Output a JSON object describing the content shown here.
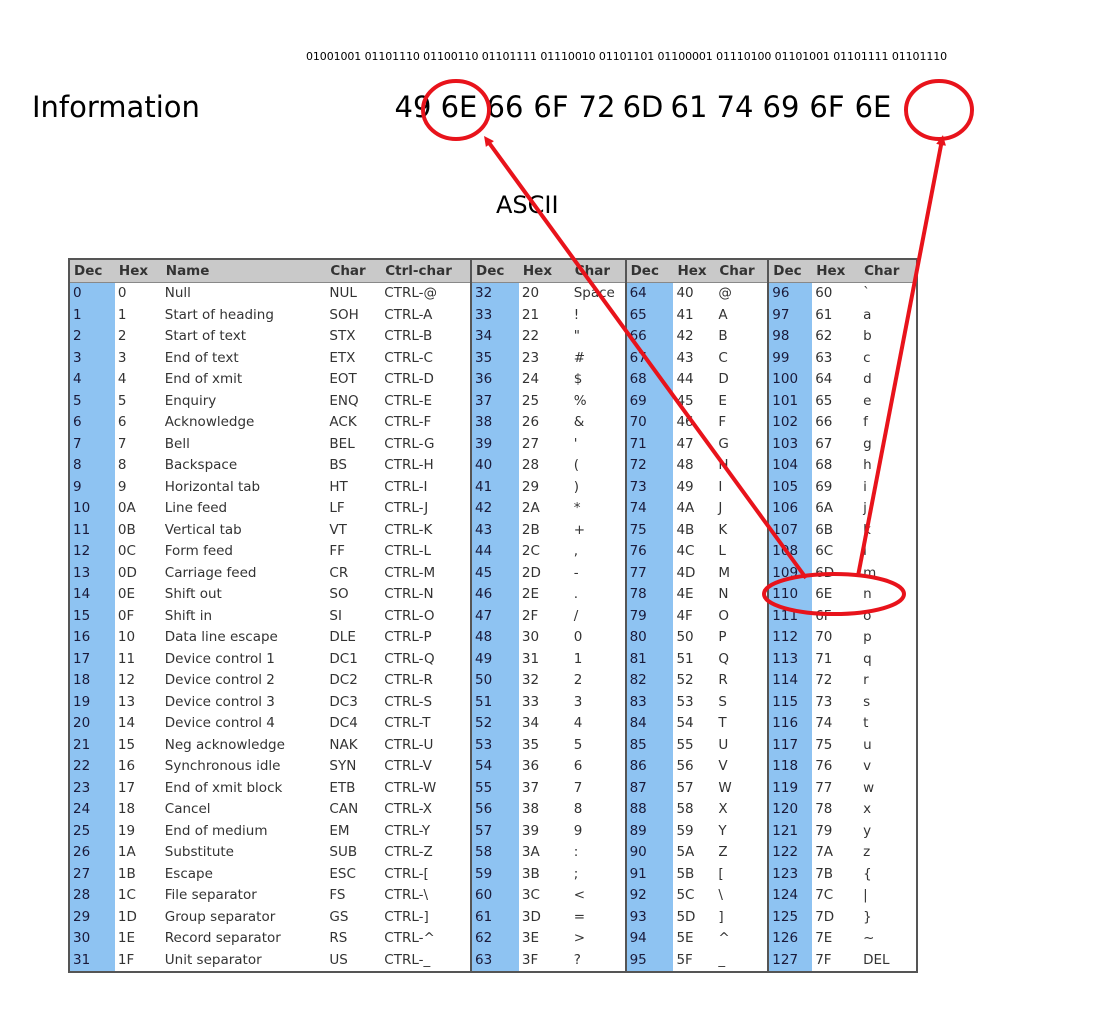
{
  "binary_string": "01001001 01101110 01100110 01101111 01110010 01101101 01100001 01110100 01101001 01101111 01101110",
  "word": "Information",
  "hex_values": [
    "49",
    "6E",
    "66",
    "6F",
    "72",
    "6D",
    "61",
    "74",
    "69",
    "6F",
    "6E"
  ],
  "ascii_label": "ASCII",
  "headers": [
    "Dec",
    "Hex",
    "Name",
    "Char",
    "Ctrl-char",
    "Dec",
    "Hex",
    "Char",
    "Dec",
    "Hex",
    "Char",
    "Dec",
    "Hex",
    "Char"
  ],
  "rows": [
    [
      "0",
      "0",
      "Null",
      "NUL",
      "CTRL-@",
      "32",
      "20",
      "Space",
      "64",
      "40",
      "@",
      "96",
      "60",
      "`"
    ],
    [
      "1",
      "1",
      "Start of heading",
      "SOH",
      "CTRL-A",
      "33",
      "21",
      "!",
      "65",
      "41",
      "A",
      "97",
      "61",
      "a"
    ],
    [
      "2",
      "2",
      "Start of text",
      "STX",
      "CTRL-B",
      "34",
      "22",
      "\"",
      "66",
      "42",
      "B",
      "98",
      "62",
      "b"
    ],
    [
      "3",
      "3",
      "End of text",
      "ETX",
      "CTRL-C",
      "35",
      "23",
      "#",
      "67",
      "43",
      "C",
      "99",
      "63",
      "c"
    ],
    [
      "4",
      "4",
      "End of xmit",
      "EOT",
      "CTRL-D",
      "36",
      "24",
      "$",
      "68",
      "44",
      "D",
      "100",
      "64",
      "d"
    ],
    [
      "5",
      "5",
      "Enquiry",
      "ENQ",
      "CTRL-E",
      "37",
      "25",
      "%",
      "69",
      "45",
      "E",
      "101",
      "65",
      "e"
    ],
    [
      "6",
      "6",
      "Acknowledge",
      "ACK",
      "CTRL-F",
      "38",
      "26",
      "&",
      "70",
      "46",
      "F",
      "102",
      "66",
      "f"
    ],
    [
      "7",
      "7",
      "Bell",
      "BEL",
      "CTRL-G",
      "39",
      "27",
      "'",
      "71",
      "47",
      "G",
      "103",
      "67",
      "g"
    ],
    [
      "8",
      "8",
      "Backspace",
      "BS",
      "CTRL-H",
      "40",
      "28",
      "(",
      "72",
      "48",
      "H",
      "104",
      "68",
      "h"
    ],
    [
      "9",
      "9",
      "Horizontal tab",
      "HT",
      "CTRL-I",
      "41",
      "29",
      ")",
      "73",
      "49",
      "I",
      "105",
      "69",
      "i"
    ],
    [
      "10",
      "0A",
      "Line feed",
      "LF",
      "CTRL-J",
      "42",
      "2A",
      "*",
      "74",
      "4A",
      "J",
      "106",
      "6A",
      "j"
    ],
    [
      "11",
      "0B",
      "Vertical tab",
      "VT",
      "CTRL-K",
      "43",
      "2B",
      "+",
      "75",
      "4B",
      "K",
      "107",
      "6B",
      "k"
    ],
    [
      "12",
      "0C",
      "Form feed",
      "FF",
      "CTRL-L",
      "44",
      "2C",
      ",",
      "76",
      "4C",
      "L",
      "108",
      "6C",
      "l"
    ],
    [
      "13",
      "0D",
      "Carriage feed",
      "CR",
      "CTRL-M",
      "45",
      "2D",
      "-",
      "77",
      "4D",
      "M",
      "109",
      "6D",
      "m"
    ],
    [
      "14",
      "0E",
      "Shift out",
      "SO",
      "CTRL-N",
      "46",
      "2E",
      ".",
      "78",
      "4E",
      "N",
      "110",
      "6E",
      "n"
    ],
    [
      "15",
      "0F",
      "Shift in",
      "SI",
      "CTRL-O",
      "47",
      "2F",
      "/",
      "79",
      "4F",
      "O",
      "111",
      "6F",
      "o"
    ],
    [
      "16",
      "10",
      "Data line escape",
      "DLE",
      "CTRL-P",
      "48",
      "30",
      "0",
      "80",
      "50",
      "P",
      "112",
      "70",
      "p"
    ],
    [
      "17",
      "11",
      "Device control 1",
      "DC1",
      "CTRL-Q",
      "49",
      "31",
      "1",
      "81",
      "51",
      "Q",
      "113",
      "71",
      "q"
    ],
    [
      "18",
      "12",
      "Device control 2",
      "DC2",
      "CTRL-R",
      "50",
      "32",
      "2",
      "82",
      "52",
      "R",
      "114",
      "72",
      "r"
    ],
    [
      "19",
      "13",
      "Device control 3",
      "DC3",
      "CTRL-S",
      "51",
      "33",
      "3",
      "83",
      "53",
      "S",
      "115",
      "73",
      "s"
    ],
    [
      "20",
      "14",
      "Device control 4",
      "DC4",
      "CTRL-T",
      "52",
      "34",
      "4",
      "84",
      "54",
      "T",
      "116",
      "74",
      "t"
    ],
    [
      "21",
      "15",
      "Neg acknowledge",
      "NAK",
      "CTRL-U",
      "53",
      "35",
      "5",
      "85",
      "55",
      "U",
      "117",
      "75",
      "u"
    ],
    [
      "22",
      "16",
      "Synchronous idle",
      "SYN",
      "CTRL-V",
      "54",
      "36",
      "6",
      "86",
      "56",
      "V",
      "118",
      "76",
      "v"
    ],
    [
      "23",
      "17",
      "End of xmit block",
      "ETB",
      "CTRL-W",
      "55",
      "37",
      "7",
      "87",
      "57",
      "W",
      "119",
      "77",
      "w"
    ],
    [
      "24",
      "18",
      "Cancel",
      "CAN",
      "CTRL-X",
      "56",
      "38",
      "8",
      "88",
      "58",
      "X",
      "120",
      "78",
      "x"
    ],
    [
      "25",
      "19",
      "End of medium",
      "EM",
      "CTRL-Y",
      "57",
      "39",
      "9",
      "89",
      "59",
      "Y",
      "121",
      "79",
      "y"
    ],
    [
      "26",
      "1A",
      "Substitute",
      "SUB",
      "CTRL-Z",
      "58",
      "3A",
      ":",
      "90",
      "5A",
      "Z",
      "122",
      "7A",
      "z"
    ],
    [
      "27",
      "1B",
      "Escape",
      "ESC",
      "CTRL-[",
      "59",
      "3B",
      ";",
      "91",
      "5B",
      "[",
      "123",
      "7B",
      "{"
    ],
    [
      "28",
      "1C",
      "File separator",
      "FS",
      "CTRL-\\",
      "60",
      "3C",
      "<",
      "92",
      "5C",
      "\\",
      "124",
      "7C",
      "|"
    ],
    [
      "29",
      "1D",
      "Group separator",
      "GS",
      "CTRL-]",
      "61",
      "3D",
      "=",
      "93",
      "5D",
      "]",
      "125",
      "7D",
      "}"
    ],
    [
      "30",
      "1E",
      "Record separator",
      "RS",
      "CTRL-^",
      "62",
      "3E",
      ">",
      "94",
      "5E",
      "^",
      "126",
      "7E",
      "~"
    ],
    [
      "31",
      "1F",
      "Unit separator",
      "US",
      "CTRL-_",
      "63",
      "3F",
      "?",
      "95",
      "5F",
      "_",
      "127",
      "7F",
      "DEL"
    ]
  ],
  "colors": {
    "dec_column": "#8ec3f2",
    "header": "#c9c9c9",
    "annotation": "#e8131b"
  }
}
